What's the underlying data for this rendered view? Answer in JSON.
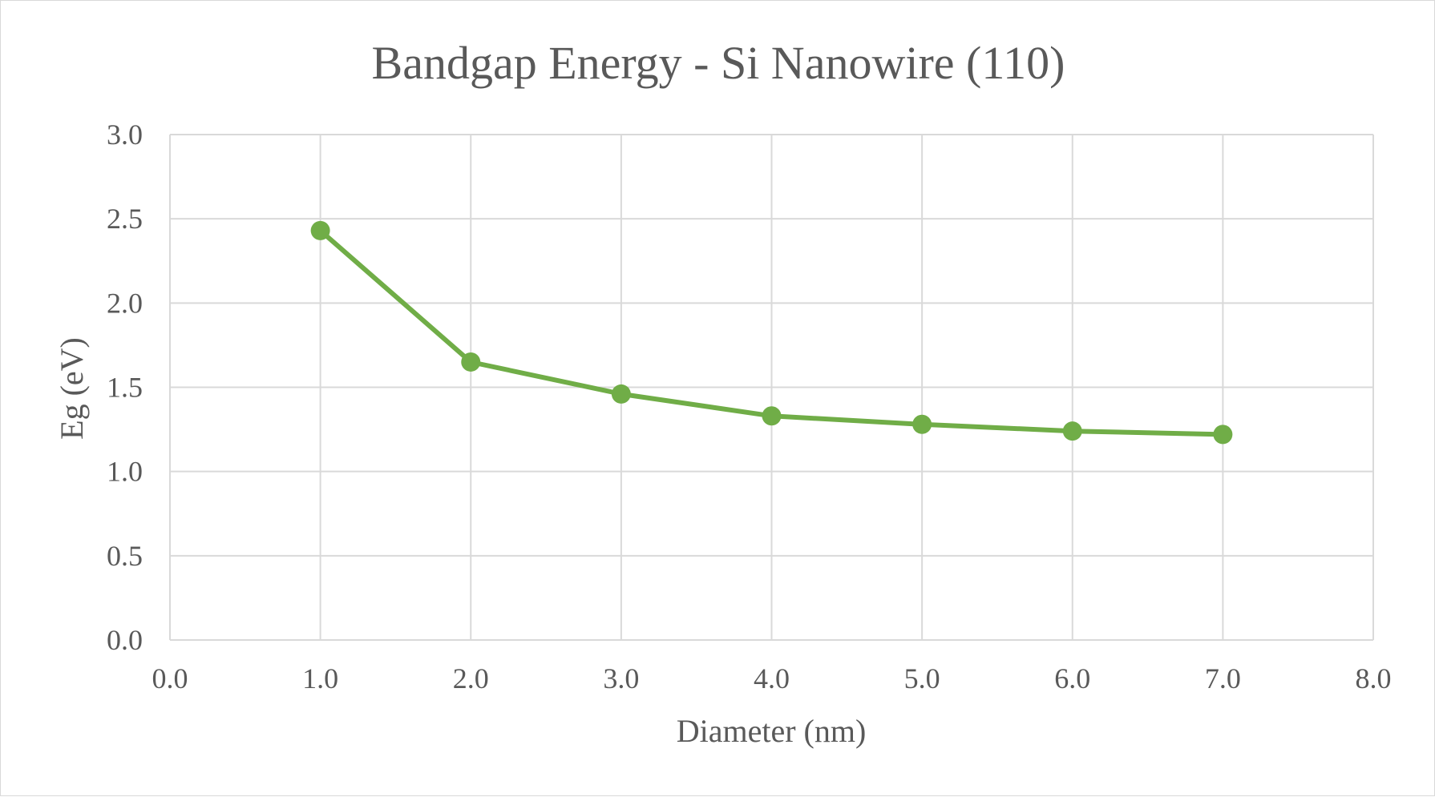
{
  "chart_data": {
    "type": "line",
    "title": "Bandgap Energy - Si Nanowire (110)",
    "xlabel": "Diameter (nm)",
    "ylabel": "Eg (eV)",
    "xlim": [
      0,
      8
    ],
    "ylim": [
      0,
      3
    ],
    "x_ticks": [
      "0.0",
      "1.0",
      "2.0",
      "3.0",
      "4.0",
      "5.0",
      "6.0",
      "7.0",
      "8.0"
    ],
    "y_ticks": [
      "0.0",
      "0.5",
      "1.0",
      "1.5",
      "2.0",
      "2.5",
      "3.0"
    ],
    "grid": true,
    "legend": "none",
    "series": [
      {
        "color": "#70ad47",
        "x": [
          1,
          2,
          3,
          4,
          5,
          6,
          7
        ],
        "y": [
          2.43,
          1.65,
          1.46,
          1.33,
          1.28,
          1.24,
          1.22
        ]
      }
    ]
  }
}
